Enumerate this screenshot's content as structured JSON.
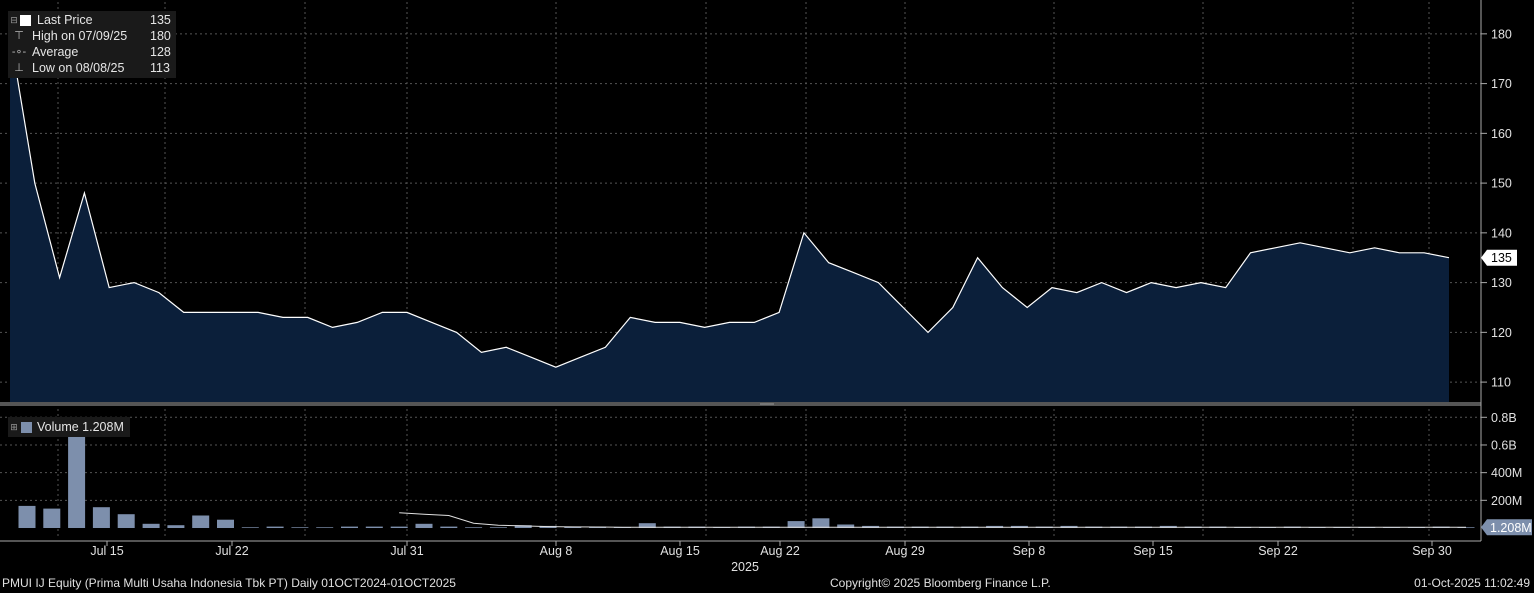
{
  "legend": {
    "last_price_label": "Last Price",
    "last_price_value": "135",
    "high_label": "High on 07/09/25",
    "high_value": "180",
    "average_label": "Average",
    "average_value": "128",
    "low_label": "Low on 08/08/25",
    "low_value": "113",
    "volume_label": "Volume 1.208M"
  },
  "footer": {
    "security": "PMUI IJ Equity (Prima Multi Usaha Indonesia Tbk PT)  Daily 01OCT2024-01OCT2025",
    "copyright": "Copyright© 2025 Bloomberg Finance L.P.",
    "timestamp": "01-Oct-2025 11:02:49"
  },
  "colors": {
    "background": "#000000",
    "area_fill": "#0b1f3a",
    "line": "#ffffff",
    "volume_bar": "#7d8fac",
    "grid": "#555555"
  },
  "chart_data": [
    {
      "type": "area",
      "series": [
        {
          "name": "Last Price",
          "values": [
            180,
            150,
            131,
            148,
            129,
            130,
            128,
            124,
            124,
            124,
            124,
            123,
            123,
            121,
            122,
            124,
            124,
            122,
            120,
            116,
            117,
            115,
            113,
            115,
            117,
            123,
            122,
            122,
            121,
            122,
            122,
            124,
            140,
            134,
            132,
            130,
            125,
            120,
            125,
            135,
            129,
            125,
            129,
            128,
            130,
            128,
            130,
            129,
            130,
            129,
            136,
            137,
            138,
            137,
            136,
            137,
            136,
            136,
            135
          ]
        }
      ],
      "xlabel": "2025",
      "x_ticks": [
        "Jul 15",
        "Jul 22",
        "Jul 31",
        "Aug 8",
        "Aug 15",
        "Aug 22",
        "Aug 29",
        "Sep 8",
        "Sep 15",
        "Sep 22",
        "Sep 30"
      ],
      "y_ticks": [
        110,
        120,
        130,
        140,
        150,
        160,
        170,
        180
      ],
      "ylim": [
        106,
        186
      ],
      "last_value_label": "135",
      "grid": true
    },
    {
      "type": "bar",
      "series": [
        {
          "name": "Volume",
          "values": [
            160,
            140,
            800,
            150,
            100,
            30,
            20,
            90,
            60,
            5,
            10,
            5,
            5,
            10,
            10,
            10,
            30,
            10,
            5,
            5,
            20,
            15,
            10,
            10,
            5,
            35,
            10,
            10,
            5,
            10,
            10,
            50,
            70,
            25,
            15,
            10,
            10,
            10,
            10,
            15,
            15,
            10,
            15,
            10,
            10,
            10,
            15,
            10,
            10,
            5,
            5,
            10,
            5,
            5,
            5,
            5,
            5,
            10,
            5
          ]
        }
      ],
      "average_line": [
        null,
        null,
        null,
        null,
        null,
        null,
        null,
        null,
        null,
        null,
        null,
        null,
        null,
        null,
        null,
        110,
        100,
        90,
        35,
        20,
        15,
        10,
        8,
        7,
        6,
        5,
        5,
        5,
        5,
        5,
        5,
        5,
        5,
        5,
        5,
        5,
        5,
        5,
        5,
        5,
        5,
        5,
        5,
        5,
        5,
        5,
        5,
        5,
        5,
        5,
        5,
        5,
        5,
        5,
        5,
        5,
        5,
        5,
        5
      ],
      "y_ticks": [
        "200M",
        "400M",
        "0.6B",
        "0.8B"
      ],
      "y_tick_values": [
        200,
        400,
        600,
        800
      ],
      "ylim": [
        0,
        860
      ],
      "unit": "M",
      "last_value_label": "1.208M",
      "grid": true
    }
  ]
}
